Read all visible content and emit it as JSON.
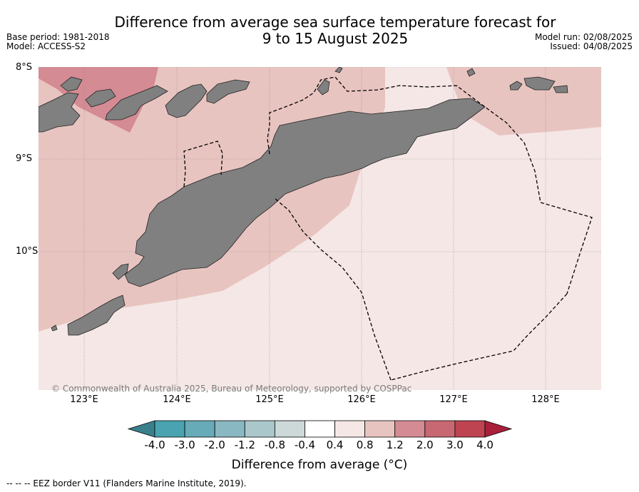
{
  "header": {
    "title_line1": "Difference from average sea surface temperature forecast for",
    "title_line2": "9 to 15 August 2025",
    "base_period": "Base period: 1981-2018",
    "model": "Model: ACCESS-S2",
    "model_run": "Model run: 02/08/2025",
    "issued": "Issued: 04/08/2025"
  },
  "map": {
    "lat_labels": [
      "8°S",
      "9°S",
      "10°S"
    ],
    "lon_labels": [
      "123°E",
      "124°E",
      "125°E",
      "126°E",
      "127°E",
      "128°E"
    ],
    "copyright": "© Commonwealth of Australia 2025, Bureau of Meteorology, supported by COSPPac",
    "land_color": "#808080",
    "colors": {
      "anom_04_08": "#f5e7e5",
      "anom_08_12": "#e8c4c0",
      "anom_12_20": "#d48b93"
    }
  },
  "colorbar": {
    "labels": [
      "-4.0",
      "-3.0",
      "-2.0",
      "-1.2",
      "-0.8",
      "-0.4",
      "0.4",
      "0.8",
      "1.2",
      "2.0",
      "3.0",
      "4.0"
    ],
    "colors": [
      "#3a7f8c",
      "#4aa3b0",
      "#68abb8",
      "#8ab8c2",
      "#aac8cb",
      "#cdd8d9",
      "#ffffff",
      "#f5e7e5",
      "#e8c4c0",
      "#d48b93",
      "#c76872",
      "#bd4450",
      "#a8203a"
    ],
    "title": "Difference from average (°C)"
  },
  "footer": {
    "legend": "--  --  -- EEZ border V11 (Flanders Marine Institute, 2019)."
  }
}
